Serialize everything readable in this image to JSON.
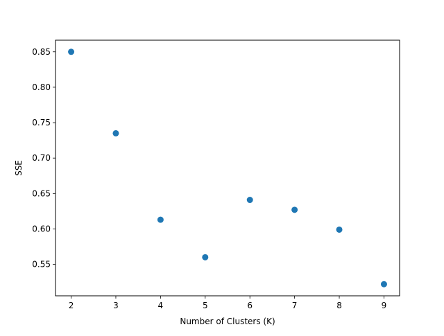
{
  "chart_data": {
    "type": "scatter",
    "title": "",
    "xlabel": "Number of Clusters (K)",
    "ylabel": "SSE",
    "x": [
      2,
      3,
      4,
      5,
      6,
      7,
      8,
      9
    ],
    "y": [
      0.85,
      0.735,
      0.613,
      0.56,
      0.641,
      0.627,
      0.599,
      0.522
    ],
    "xlim": [
      1.65,
      9.35
    ],
    "ylim": [
      0.5056,
      0.8664
    ],
    "xticks": [
      2,
      3,
      4,
      5,
      6,
      7,
      8,
      9
    ],
    "xtick_labels": [
      "2",
      "3",
      "4",
      "5",
      "6",
      "7",
      "8",
      "9"
    ],
    "yticks": [
      0.55,
      0.6,
      0.65,
      0.7,
      0.75,
      0.8,
      0.85
    ],
    "ytick_labels": [
      "0.55",
      "0.60",
      "0.65",
      "0.70",
      "0.75",
      "0.80",
      "0.85"
    ],
    "grid": false,
    "legend": "none",
    "marker_color": "#1f77b4"
  }
}
